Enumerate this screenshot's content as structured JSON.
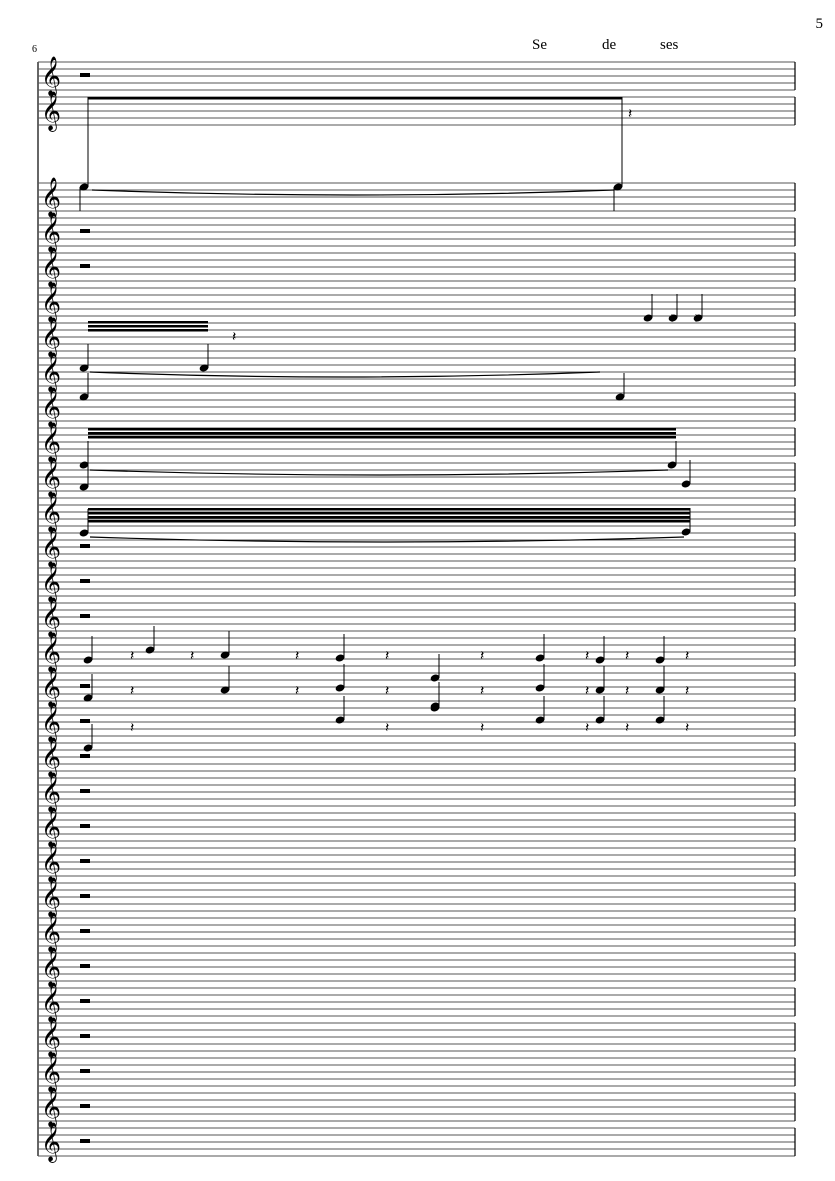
{
  "page": {
    "page_number": "5",
    "measure_number": "6",
    "lyrics": [
      "Se",
      "de",
      "ses"
    ]
  },
  "score": {
    "clef": "treble-clef-icon",
    "staff_count": 30,
    "ink_color": "#000000",
    "staff_line_color": "#555555"
  }
}
